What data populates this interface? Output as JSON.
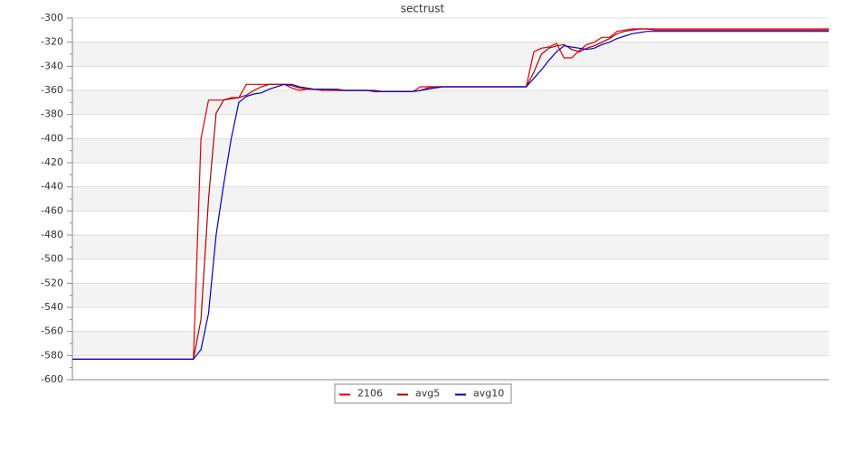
{
  "chart_data": {
    "type": "line",
    "title": "sectrust",
    "ylim": [
      -600,
      -300
    ],
    "yticks": [
      -600,
      -580,
      -560,
      -540,
      -520,
      -500,
      -480,
      -460,
      -440,
      -420,
      -400,
      -380,
      -360,
      -340,
      -320,
      -300
    ],
    "grid": true,
    "legend": "bottom",
    "series": [
      {
        "name": "2106",
        "color": "#e00000",
        "values": [
          -583,
          -583,
          -583,
          -583,
          -583,
          -583,
          -583,
          -583,
          -583,
          -583,
          -583,
          -583,
          -583,
          -583,
          -583,
          -583,
          -583,
          -400,
          -368,
          -368,
          -368,
          -366,
          -366,
          -355,
          -355,
          -355,
          -355,
          -355,
          -355,
          -358,
          -360,
          -359,
          -359,
          -360,
          -360,
          -360,
          -360,
          -360,
          -360,
          -360,
          -361,
          -361,
          -361,
          -361,
          -361,
          -361,
          -357,
          -357,
          -357,
          -357,
          -357,
          -357,
          -357,
          -357,
          -357,
          -357,
          -357,
          -357,
          -357,
          -357,
          -357,
          -328,
          -325,
          -324,
          -321,
          -333,
          -333,
          -327,
          -322,
          -320,
          -316,
          -316,
          -311,
          -310,
          -309,
          -309,
          -309,
          -309,
          -309,
          -309,
          -309,
          -309,
          -309,
          -309,
          -309,
          -309,
          -309,
          -309,
          -309,
          -309,
          -309,
          -309,
          -309,
          -309,
          -309,
          -309,
          -309,
          -309,
          -309,
          -309,
          -309
        ]
      },
      {
        "name": "avg5",
        "color": "#b00000",
        "values": [
          -583,
          -583,
          -583,
          -583,
          -583,
          -583,
          -583,
          -583,
          -583,
          -583,
          -583,
          -583,
          -583,
          -583,
          -583,
          -583,
          -583,
          -550,
          -450,
          -379,
          -368,
          -367,
          -366,
          -364,
          -360,
          -357,
          -355,
          -355,
          -355,
          -356,
          -358,
          -359,
          -359,
          -359,
          -359,
          -360,
          -360,
          -360,
          -360,
          -360,
          -360,
          -361,
          -361,
          -361,
          -361,
          -361,
          -360,
          -358,
          -357,
          -357,
          -357,
          -357,
          -357,
          -357,
          -357,
          -357,
          -357,
          -357,
          -357,
          -357,
          -357,
          -345,
          -330,
          -325,
          -323,
          -322,
          -326,
          -328,
          -325,
          -323,
          -320,
          -317,
          -313,
          -311,
          -310,
          -309,
          -309,
          -310,
          -310,
          -310,
          -310,
          -310,
          -310,
          -310,
          -310,
          -310,
          -310,
          -310,
          -310,
          -310,
          -310,
          -310,
          -310,
          -310,
          -310,
          -310,
          -310,
          -310,
          -310,
          -310,
          -310
        ]
      },
      {
        "name": "avg10",
        "color": "#0000cc",
        "values": [
          -583,
          -583,
          -583,
          -583,
          -583,
          -583,
          -583,
          -583,
          -583,
          -583,
          -583,
          -583,
          -583,
          -583,
          -583,
          -583,
          -583,
          -575,
          -545,
          -480,
          -438,
          -400,
          -370,
          -365,
          -363,
          -362,
          -359,
          -357,
          -355,
          -355,
          -357,
          -358,
          -359,
          -359,
          -359,
          -359,
          -360,
          -360,
          -360,
          -360,
          -361,
          -361,
          -361,
          -361,
          -361,
          -361,
          -360,
          -359,
          -358,
          -357,
          -357,
          -357,
          -357,
          -357,
          -357,
          -357,
          -357,
          -357,
          -357,
          -357,
          -357,
          -350,
          -343,
          -335,
          -328,
          -323,
          -324,
          -325,
          -326,
          -325,
          -322,
          -320,
          -317,
          -315,
          -313,
          -312,
          -311,
          -311,
          -311,
          -311,
          -311,
          -311,
          -311,
          -311,
          -311,
          -311,
          -311,
          -311,
          -311,
          -311,
          -311,
          -311,
          -311,
          -311,
          -311,
          -311,
          -311,
          -311,
          -311,
          -311,
          -311
        ]
      }
    ]
  }
}
